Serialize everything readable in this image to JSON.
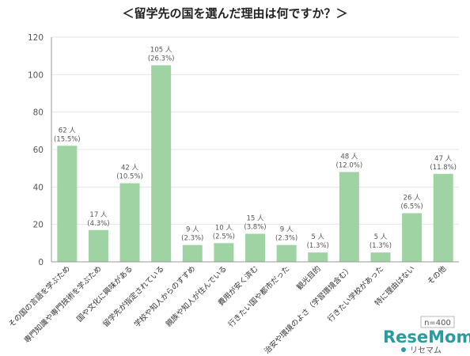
{
  "chart_data": {
    "type": "bar",
    "title": "＜留学先の国を選んだ理由は何ですか？＞",
    "categories": [
      "その国の言語を学ぶため",
      "専門知識や専門技術を学ぶため",
      "国や文化に興味がある",
      "留学先が指定されている",
      "学校や知人からのすすめ",
      "親族や知人が住んでいる",
      "費用が安く済む",
      "行きたい国や都市だった",
      "観光目的",
      "治安や環境のよさ（学習環境含む）",
      "行きたい学校があった",
      "特に理由はない",
      "その他"
    ],
    "values": [
      62,
      17,
      42,
      105,
      9,
      10,
      15,
      9,
      5,
      48,
      5,
      26,
      47
    ],
    "value_labels": [
      "62 人",
      "17 人",
      "42 人",
      "105 人",
      "9 人",
      "10 人",
      "15 人",
      "9 人",
      "5 人",
      "48 人",
      "5 人",
      "26 人",
      "47 人"
    ],
    "percent_labels": [
      "(15.5%)",
      "(4.3%)",
      "(10.5%)",
      "(26.3%)",
      "(2.3%)",
      "(2.5%)",
      "(3.8%)",
      "(2.3%)",
      "(1.3%)",
      "(12.0%)",
      "(1.3%)",
      "(6.5%)",
      "(11.8%)"
    ],
    "ylim": [
      0,
      120
    ],
    "yticks": [
      0,
      20,
      40,
      60,
      80,
      100,
      120
    ],
    "grid": true,
    "bar_color": "#9fd3a3",
    "grid_color": "#e6e6e6",
    "axis_color": "#999999",
    "xlabel": "",
    "ylabel": ""
  },
  "sample_note": "n=400",
  "watermark": {
    "brand": "ReseMom",
    "sub": "リセマム"
  }
}
